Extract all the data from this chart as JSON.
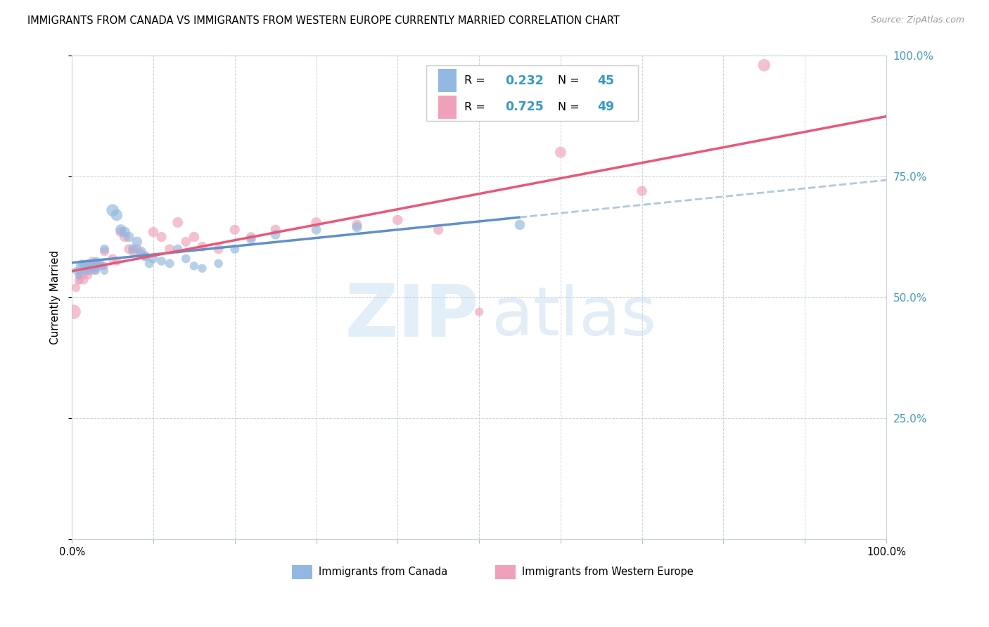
{
  "title": "IMMIGRANTS FROM CANADA VS IMMIGRANTS FROM WESTERN EUROPE CURRENTLY MARRIED CORRELATION CHART",
  "source": "Source: ZipAtlas.com",
  "ylabel": "Currently Married",
  "color_canada": "#90B8E0",
  "color_europe": "#F0A0B8",
  "color_trend_canada_solid": "#6090C8",
  "color_trend_canada_dash": "#B0C8DC",
  "color_trend_europe": "#E85878",
  "canada_R": 0.232,
  "canada_N": 45,
  "europe_R": 0.725,
  "europe_N": 49,
  "legend_label1": "Immigrants from Canada",
  "legend_label2": "Immigrants from Western Europe",
  "canada_x": [
    0.005,
    0.008,
    0.01,
    0.01,
    0.012,
    0.015,
    0.015,
    0.018,
    0.02,
    0.02,
    0.022,
    0.025,
    0.025,
    0.028,
    0.03,
    0.03,
    0.032,
    0.035,
    0.038,
    0.04,
    0.04,
    0.05,
    0.055,
    0.06,
    0.065,
    0.07,
    0.075,
    0.08,
    0.085,
    0.09,
    0.095,
    0.1,
    0.11,
    0.12,
    0.13,
    0.14,
    0.15,
    0.16,
    0.18,
    0.2,
    0.22,
    0.25,
    0.3,
    0.35,
    0.55
  ],
  "canada_y": [
    0.555,
    0.545,
    0.565,
    0.555,
    0.57,
    0.565,
    0.555,
    0.56,
    0.57,
    0.555,
    0.565,
    0.57,
    0.56,
    0.555,
    0.575,
    0.56,
    0.565,
    0.57,
    0.565,
    0.6,
    0.555,
    0.68,
    0.67,
    0.64,
    0.635,
    0.625,
    0.6,
    0.615,
    0.595,
    0.585,
    0.57,
    0.58,
    0.575,
    0.57,
    0.6,
    0.58,
    0.565,
    0.56,
    0.57,
    0.6,
    0.62,
    0.63,
    0.64,
    0.645,
    0.65
  ],
  "canada_sizes": [
    60,
    60,
    70,
    60,
    65,
    65,
    60,
    65,
    70,
    65,
    65,
    70,
    65,
    65,
    75,
    65,
    65,
    65,
    65,
    90,
    65,
    160,
    140,
    120,
    120,
    110,
    100,
    110,
    100,
    95,
    85,
    90,
    85,
    85,
    90,
    85,
    80,
    80,
    80,
    90,
    95,
    100,
    100,
    105,
    110
  ],
  "europe_x": [
    0.002,
    0.005,
    0.008,
    0.01,
    0.01,
    0.012,
    0.015,
    0.015,
    0.018,
    0.02,
    0.02,
    0.022,
    0.025,
    0.025,
    0.028,
    0.03,
    0.03,
    0.032,
    0.035,
    0.04,
    0.04,
    0.05,
    0.055,
    0.06,
    0.065,
    0.07,
    0.075,
    0.08,
    0.085,
    0.09,
    0.1,
    0.11,
    0.12,
    0.13,
    0.14,
    0.15,
    0.16,
    0.18,
    0.2,
    0.22,
    0.25,
    0.3,
    0.35,
    0.4,
    0.45,
    0.5,
    0.6,
    0.7,
    0.85
  ],
  "europe_y": [
    0.47,
    0.52,
    0.535,
    0.545,
    0.535,
    0.545,
    0.545,
    0.535,
    0.555,
    0.565,
    0.545,
    0.555,
    0.575,
    0.555,
    0.565,
    0.57,
    0.555,
    0.57,
    0.565,
    0.595,
    0.565,
    0.58,
    0.575,
    0.635,
    0.625,
    0.6,
    0.595,
    0.6,
    0.59,
    0.585,
    0.635,
    0.625,
    0.6,
    0.655,
    0.615,
    0.625,
    0.605,
    0.6,
    0.64,
    0.625,
    0.64,
    0.655,
    0.65,
    0.66,
    0.64,
    0.47,
    0.8,
    0.72,
    0.98
  ],
  "europe_sizes": [
    220,
    80,
    70,
    70,
    65,
    70,
    70,
    65,
    70,
    75,
    65,
    70,
    75,
    65,
    70,
    75,
    65,
    70,
    70,
    90,
    65,
    90,
    85,
    110,
    110,
    100,
    100,
    100,
    95,
    90,
    110,
    105,
    100,
    115,
    100,
    110,
    100,
    100,
    105,
    100,
    105,
    110,
    110,
    110,
    105,
    80,
    130,
    110,
    160
  ],
  "xlim": [
    0.0,
    1.0
  ],
  "ylim": [
    0.0,
    1.0
  ],
  "xtick_positions": [
    0.0,
    0.1,
    0.2,
    0.3,
    0.4,
    0.5,
    0.6,
    0.7,
    0.8,
    0.9,
    1.0
  ],
  "ytick_positions": [
    0.0,
    0.25,
    0.5,
    0.75,
    1.0
  ],
  "right_ytick_labels": [
    "",
    "25.0%",
    "50.0%",
    "75.0%",
    "100.0%"
  ],
  "canada_line_solid_end": 0.55,
  "europe_line_x0": 0.0,
  "europe_line_x1": 1.0
}
